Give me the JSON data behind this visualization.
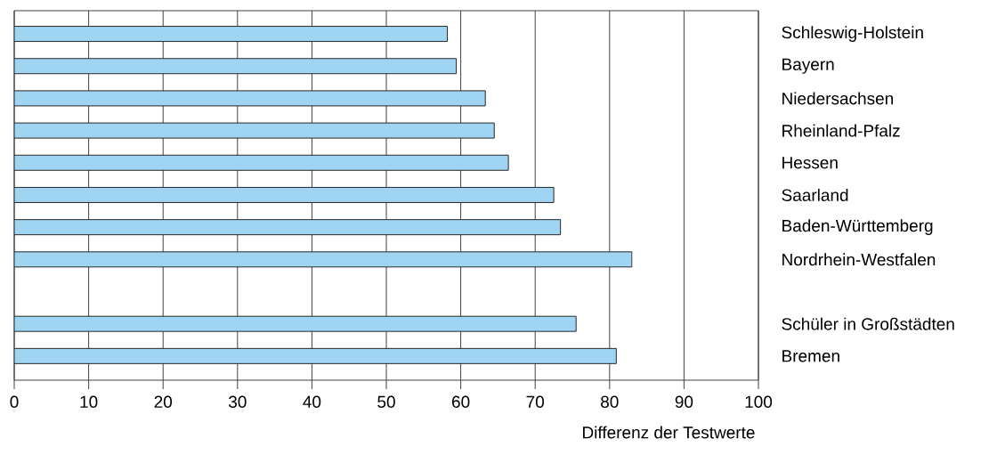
{
  "chart_data": {
    "type": "bar",
    "orientation": "horizontal",
    "xlabel": "Differenz der Testwerte",
    "categories": [
      "Schleswig-Holstein",
      "Bayern",
      "Niedersachsen",
      "Rheinland-Pfalz",
      "Hessen",
      "Saarland",
      "Baden-Württemberg",
      "Nordrhein-Westfalen",
      null,
      "Schüler in Großstädten",
      "Bremen"
    ],
    "values": [
      58.2,
      59.4,
      63.3,
      64.5,
      66.4,
      72.5,
      73.4,
      83.0,
      null,
      75.5,
      80.9
    ],
    "color": "#9fd5f3",
    "xlim": [
      0,
      100
    ],
    "xticks": [
      0,
      10,
      20,
      30,
      40,
      50,
      60,
      70,
      80,
      90,
      100
    ],
    "grid": "x"
  }
}
